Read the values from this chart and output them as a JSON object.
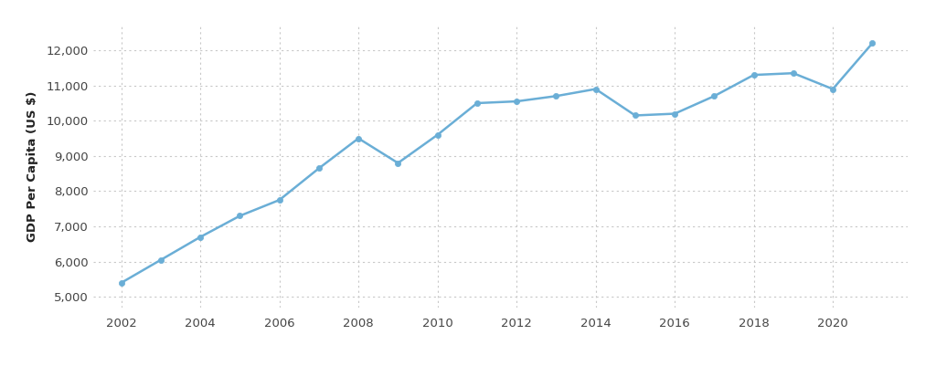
{
  "years": [
    2002,
    2003,
    2004,
    2005,
    2006,
    2007,
    2008,
    2009,
    2010,
    2011,
    2012,
    2013,
    2014,
    2015,
    2016,
    2017,
    2018,
    2019,
    2020,
    2021
  ],
  "gdp_per_capita": [
    5400,
    6050,
    6700,
    7300,
    7750,
    8650,
    9500,
    8800,
    9600,
    10500,
    10550,
    10700,
    10900,
    10150,
    10200,
    10700,
    11300,
    11350,
    10900,
    12200
  ],
  "line_color": "#6aaed6",
  "marker_color": "#6aaed6",
  "background_color": "#ffffff",
  "grid_color": "#c8c8c8",
  "ylabel": "GDP Per Capita (US $)",
  "ylim": [
    4700,
    12700
  ],
  "yticks": [
    5000,
    6000,
    7000,
    8000,
    9000,
    10000,
    11000,
    12000
  ],
  "xticks": [
    2002,
    2004,
    2006,
    2008,
    2010,
    2012,
    2014,
    2016,
    2018,
    2020
  ],
  "ylabel_color": "#222222",
  "tick_color": "#444444",
  "line_width": 1.8,
  "marker_size": 4.5
}
